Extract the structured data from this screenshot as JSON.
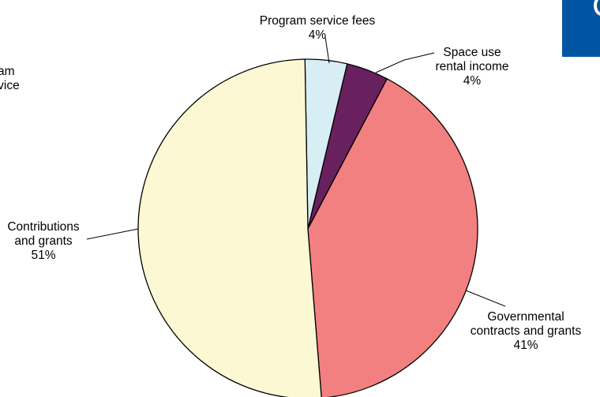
{
  "chart_data": {
    "type": "pie",
    "title": "",
    "slices": [
      {
        "name": "Program service fees",
        "label_lines": [
          "Program service fees"
        ],
        "value": 4,
        "value_label": "4%",
        "color": "#d6eef4"
      },
      {
        "name": "Space use rental income",
        "label_lines": [
          "Space use",
          "rental income"
        ],
        "value": 4,
        "value_label": "4%",
        "color": "#68205f"
      },
      {
        "name": "Governmental contracts and grants",
        "label_lines": [
          "Governmental",
          "contracts and grants"
        ],
        "value": 41,
        "value_label": "41%",
        "color": "#f38080"
      },
      {
        "name": "Contributions and grants",
        "label_lines": [
          "Contributions",
          "and grants"
        ],
        "value": 51,
        "value_label": "51%",
        "color": "#fcf8d3"
      }
    ],
    "clipped_left_text": [
      "am",
      "rvice"
    ],
    "accent_color": "#0055a3",
    "start_angle_deg": -1
  }
}
